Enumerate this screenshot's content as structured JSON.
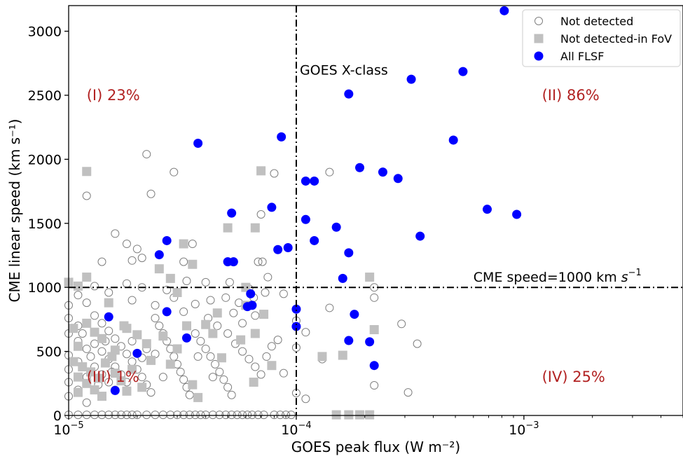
{
  "chart_data": {
    "type": "scatter",
    "xlabel": "GOES peak flux (W m⁻²)",
    "ylabel": "CME linear speed (km s⁻¹)",
    "xscale": "log",
    "xlim": [
      1e-05,
      0.005
    ],
    "ylim": [
      0,
      3200
    ],
    "x_ticks": [
      {
        "value": 1e-05,
        "base": "10",
        "exp": "−5"
      },
      {
        "value": 0.0001,
        "base": "10",
        "exp": "−4"
      },
      {
        "value": 0.001,
        "base": "10",
        "exp": "−3"
      }
    ],
    "y_ticks": [
      {
        "value": 0,
        "label": "0"
      },
      {
        "value": 500,
        "label": "500"
      },
      {
        "value": 1000,
        "label": "1000"
      },
      {
        "value": 1500,
        "label": "1500"
      },
      {
        "value": 2000,
        "label": "2000"
      },
      {
        "value": 2500,
        "label": "2500"
      },
      {
        "value": 3000,
        "label": "3000"
      }
    ],
    "reference_lines": {
      "vertical": {
        "x": 0.0001,
        "label": "GOES X-class"
      },
      "horizontal": {
        "y": 1000,
        "label_main": "CME speed=1000 km ",
        "label_unit": "s",
        "label_exp": "−1"
      }
    },
    "quadrant_labels": [
      {
        "id": "I",
        "text": "(I) 23%",
        "x": 1.2e-05,
        "y": 2500
      },
      {
        "id": "II",
        "text": "(II) 86%",
        "x": 0.0012,
        "y": 2500
      },
      {
        "id": "III",
        "text": "(III) 1%",
        "x": 1.2e-05,
        "y": 300
      },
      {
        "id": "IV",
        "text": "(IV) 25%",
        "x": 0.0012,
        "y": 300
      }
    ],
    "legend": {
      "position": "top-right"
    },
    "colors": {
      "not_detected": "#808080",
      "fov": "#c0c0c0",
      "flsf": "#0000ff",
      "quadrant": "#b22222"
    },
    "series": [
      {
        "name": "All FLSF",
        "marker": "circle-filled",
        "points": [
          [
            0.00082,
            3160
          ],
          [
            0.00032,
            2625
          ],
          [
            0.00054,
            2685
          ],
          [
            0.00017,
            2510
          ],
          [
            0.00049,
            2150
          ],
          [
            3.7e-05,
            2125
          ],
          [
            8.6e-05,
            2175
          ],
          [
            0.00019,
            1935
          ],
          [
            0.00024,
            1900
          ],
          [
            0.00028,
            1850
          ],
          [
            0.00011,
            1830
          ],
          [
            0.00012,
            1830
          ],
          [
            0.00069,
            1610
          ],
          [
            0.00093,
            1570
          ],
          [
            7.8e-05,
            1625
          ],
          [
            5.2e-05,
            1580
          ],
          [
            0.00011,
            1530
          ],
          [
            0.00015,
            1470
          ],
          [
            0.00035,
            1400
          ],
          [
            0.00012,
            1365
          ],
          [
            2.7e-05,
            1365
          ],
          [
            9.2e-05,
            1310
          ],
          [
            8.3e-05,
            1295
          ],
          [
            0.00017,
            1270
          ],
          [
            2.5e-05,
            1255
          ],
          [
            5.3e-05,
            1200
          ],
          [
            5e-05,
            1200
          ],
          [
            0.00016,
            1070
          ],
          [
            6.3e-05,
            950
          ],
          [
            6.4e-05,
            860
          ],
          [
            6.1e-05,
            850
          ],
          [
            0.0001,
            830
          ],
          [
            2.7e-05,
            810
          ],
          [
            0.00018,
            790
          ],
          [
            1.5e-05,
            770
          ],
          [
            0.0001,
            695
          ],
          [
            3.3e-05,
            605
          ],
          [
            0.00017,
            585
          ],
          [
            0.00021,
            575
          ],
          [
            2e-05,
            485
          ],
          [
            0.00022,
            390
          ],
          [
            1.6e-05,
            195
          ]
        ]
      },
      {
        "name": "Not detected-in FoV",
        "marker": "square-filled",
        "points": [
          [
            1.2e-05,
            1905
          ],
          [
            7e-05,
            1910
          ],
          [
            5e-05,
            1465
          ],
          [
            6.6e-05,
            1465
          ],
          [
            3.2e-05,
            1340
          ],
          [
            3.5e-05,
            1180
          ],
          [
            2.5e-05,
            1145
          ],
          [
            2.8e-05,
            1070
          ],
          [
            1.2e-05,
            1080
          ],
          [
            1e-05,
            1040
          ],
          [
            6e-05,
            1000
          ],
          [
            3e-05,
            960
          ],
          [
            0.00021,
            1080
          ],
          [
            1.1e-05,
            1010
          ],
          [
            1.5e-05,
            880
          ],
          [
            6e-05,
            860
          ],
          [
            7.2e-05,
            790
          ],
          [
            4e-05,
            710
          ],
          [
            4.5e-05,
            800
          ],
          [
            0.00022,
            670
          ],
          [
            0.00013,
            460
          ],
          [
            0.00016,
            470
          ],
          [
            7.8e-05,
            390
          ],
          [
            6.5e-05,
            260
          ],
          [
            1.2e-05,
            720
          ],
          [
            1.3e-05,
            650
          ],
          [
            1.4e-05,
            600
          ],
          [
            1.1e-05,
            540
          ],
          [
            1.6e-05,
            510
          ],
          [
            1.8e-05,
            680
          ],
          [
            2.2e-05,
            560
          ],
          [
            2.6e-05,
            620
          ],
          [
            3.3e-05,
            700
          ],
          [
            3.5e-05,
            240
          ],
          [
            2.1e-05,
            220
          ],
          [
            1.8e-05,
            190
          ],
          [
            1.1e-05,
            300
          ],
          [
            1.2e-05,
            250
          ],
          [
            1.3e-05,
            200
          ],
          [
            1.4e-05,
            150
          ],
          [
            1.05e-05,
            420
          ],
          [
            1.15e-05,
            380
          ],
          [
            1.25e-05,
            340
          ],
          [
            1.35e-05,
            290
          ],
          [
            1.45e-05,
            410
          ],
          [
            1.6e-05,
            330
          ],
          [
            1.7e-05,
            270
          ],
          [
            1.9e-05,
            360
          ],
          [
            2.3e-05,
            430
          ],
          [
            2.8e-05,
            400
          ],
          [
            3e-05,
            520
          ],
          [
            4.3e-05,
            640
          ],
          [
            4.7e-05,
            450
          ],
          [
            5.7e-05,
            590
          ],
          [
            6.6e-05,
            640
          ],
          [
            0.00017,
            5
          ],
          [
            0.00019,
            5
          ],
          [
            0.00021,
            5
          ],
          [
            0.00015,
            5
          ],
          [
            3.7e-05,
            140
          ],
          [
            1.55e-05,
            460
          ],
          [
            1.1e-05,
            180
          ],
          [
            1.05e-05,
            680
          ],
          [
            1.75e-05,
            700
          ],
          [
            2e-05,
            630
          ]
        ]
      },
      {
        "name": "Not detected",
        "marker": "circle-open",
        "points": [
          [
            2.2e-05,
            2040
          ],
          [
            2.9e-05,
            1900
          ],
          [
            8e-05,
            1890
          ],
          [
            0.00014,
            1900
          ],
          [
            1.2e-05,
            1715
          ],
          [
            2.3e-05,
            1730
          ],
          [
            7e-05,
            1570
          ],
          [
            1.6e-05,
            1420
          ],
          [
            1.8e-05,
            1340
          ],
          [
            2e-05,
            1300
          ],
          [
            3.5e-05,
            1340
          ],
          [
            2.1e-05,
            1230
          ],
          [
            1.9e-05,
            1210
          ],
          [
            1.4e-05,
            1200
          ],
          [
            3.2e-05,
            1200
          ],
          [
            6.8e-05,
            1200
          ],
          [
            7.1e-05,
            1200
          ],
          [
            7.5e-05,
            1080
          ],
          [
            5.1e-05,
            1040
          ],
          [
            4e-05,
            1040
          ],
          [
            3.3e-05,
            1050
          ],
          [
            2.1e-05,
            1000
          ],
          [
            1.8e-05,
            1030
          ],
          [
            1.3e-05,
            1010
          ],
          [
            1.1e-05,
            940
          ],
          [
            1.2e-05,
            880
          ],
          [
            1.5e-05,
            960
          ],
          [
            1.9e-05,
            900
          ],
          [
            2.4e-05,
            860
          ],
          [
            2.7e-05,
            980
          ],
          [
            2.9e-05,
            920
          ],
          [
            3.2e-05,
            810
          ],
          [
            3.6e-05,
            870
          ],
          [
            4.2e-05,
            900
          ],
          [
            4.9e-05,
            920
          ],
          [
            5.6e-05,
            880
          ],
          [
            6.2e-05,
            990
          ],
          [
            6.5e-05,
            920
          ],
          [
            7.3e-05,
            960
          ],
          [
            8.8e-05,
            950
          ],
          [
            0.00022,
            1000
          ],
          [
            0.00022,
            920
          ],
          [
            0.00014,
            840
          ],
          [
            0.00029,
            715
          ],
          [
            0.00034,
            560
          ],
          [
            0.00011,
            650
          ],
          [
            0.0001,
            530
          ],
          [
            0.0001,
            740
          ],
          [
            0.00013,
            440
          ],
          [
            0.00022,
            235
          ],
          [
            0.00031,
            180
          ],
          [
            0.0001,
            175
          ],
          [
            0.00011,
            130
          ],
          [
            1e-05,
            860
          ],
          [
            1e-05,
            760
          ],
          [
            1.1e-05,
            700
          ],
          [
            1e-05,
            640
          ],
          [
            1.1e-05,
            580
          ],
          [
            1.2e-05,
            520
          ],
          [
            1e-05,
            470
          ],
          [
            1.1e-05,
            420
          ],
          [
            1e-05,
            360
          ],
          [
            1.2e-05,
            300
          ],
          [
            1e-05,
            260
          ],
          [
            1.1e-05,
            200
          ],
          [
            1e-05,
            150
          ],
          [
            1.2e-05,
            100
          ],
          [
            1.3e-05,
            780
          ],
          [
            1.4e-05,
            720
          ],
          [
            1.5e-05,
            660
          ],
          [
            1.6e-05,
            600
          ],
          [
            1.7e-05,
            540
          ],
          [
            1.8e-05,
            480
          ],
          [
            1.9e-05,
            420
          ],
          [
            2e-05,
            360
          ],
          [
            2.1e-05,
            300
          ],
          [
            2.2e-05,
            240
          ],
          [
            2.3e-05,
            180
          ],
          [
            1.3e-05,
            560
          ],
          [
            1.4e-05,
            500
          ],
          [
            1.5e-05,
            440
          ],
          [
            1.6e-05,
            380
          ],
          [
            1.7e-05,
            320
          ],
          [
            1.8e-05,
            260
          ],
          [
            1.3e-05,
            380
          ],
          [
            1.4e-05,
            320
          ],
          [
            1.5e-05,
            260
          ],
          [
            1.6e-05,
            200
          ],
          [
            2.4e-05,
            760
          ],
          [
            2.5e-05,
            700
          ],
          [
            2.6e-05,
            640
          ],
          [
            2.7e-05,
            580
          ],
          [
            2.8e-05,
            520
          ],
          [
            2.9e-05,
            460
          ],
          [
            3e-05,
            400
          ],
          [
            3.1e-05,
            340
          ],
          [
            3.2e-05,
            280
          ],
          [
            3.3e-05,
            220
          ],
          [
            3.4e-05,
            160
          ],
          [
            3.6e-05,
            640
          ],
          [
            3.8e-05,
            580
          ],
          [
            4e-05,
            520
          ],
          [
            4.2e-05,
            460
          ],
          [
            4.4e-05,
            400
          ],
          [
            4.6e-05,
            340
          ],
          [
            4.8e-05,
            280
          ],
          [
            5e-05,
            220
          ],
          [
            5.2e-05,
            160
          ],
          [
            4.1e-05,
            760
          ],
          [
            4.5e-05,
            700
          ],
          [
            5e-05,
            640
          ],
          [
            5.4e-05,
            560
          ],
          [
            5.8e-05,
            500
          ],
          [
            6.2e-05,
            440
          ],
          [
            6.6e-05,
            380
          ],
          [
            7e-05,
            320
          ],
          [
            7.4e-05,
            460
          ],
          [
            7.8e-05,
            540
          ],
          [
            8.3e-05,
            590
          ],
          [
            8.8e-05,
            330
          ],
          [
            6.6e-05,
            780
          ],
          [
            5.8e-05,
            720
          ],
          [
            5.3e-05,
            800
          ],
          [
            2.4e-05,
            480
          ],
          [
            2.2e-05,
            520
          ],
          [
            1.9e-05,
            580
          ],
          [
            2.6e-05,
            300
          ],
          [
            2.1e-05,
            450
          ],
          [
            3.7e-05,
            460
          ],
          [
            4.3e-05,
            300
          ],
          [
            1.15e-05,
            640
          ],
          [
            1.25e-05,
            460
          ],
          [
            1.35e-05,
            240
          ],
          [
            1.45e-05,
            580
          ],
          [
            1.55e-05,
            340
          ],
          [
            1e-05,
            5
          ],
          [
            1.1e-05,
            5
          ],
          [
            1.2e-05,
            5
          ],
          [
            1.3e-05,
            5
          ],
          [
            1.4e-05,
            5
          ],
          [
            1.5e-05,
            5
          ],
          [
            1.6e-05,
            5
          ],
          [
            1.7e-05,
            5
          ],
          [
            1.8e-05,
            5
          ],
          [
            1.9e-05,
            5
          ],
          [
            2e-05,
            5
          ],
          [
            2.2e-05,
            5
          ],
          [
            2.4e-05,
            5
          ],
          [
            2.6e-05,
            5
          ],
          [
            2.8e-05,
            5
          ],
          [
            3e-05,
            5
          ],
          [
            3.2e-05,
            5
          ],
          [
            3.4e-05,
            5
          ],
          [
            3.6e-05,
            5
          ],
          [
            3.8e-05,
            5
          ],
          [
            4e-05,
            5
          ],
          [
            4.3e-05,
            5
          ],
          [
            4.6e-05,
            5
          ],
          [
            4.9e-05,
            5
          ],
          [
            5.2e-05,
            5
          ],
          [
            5.5e-05,
            5
          ],
          [
            5.8e-05,
            5
          ],
          [
            6.1e-05,
            5
          ],
          [
            6.4e-05,
            5
          ],
          [
            6.8e-05,
            5
          ],
          [
            7.2e-05,
            5
          ],
          [
            8e-05,
            5
          ],
          [
            8.5e-05,
            5
          ],
          [
            9e-05,
            5
          ],
          [
            9.5e-05,
            5
          ]
        ]
      }
    ]
  }
}
